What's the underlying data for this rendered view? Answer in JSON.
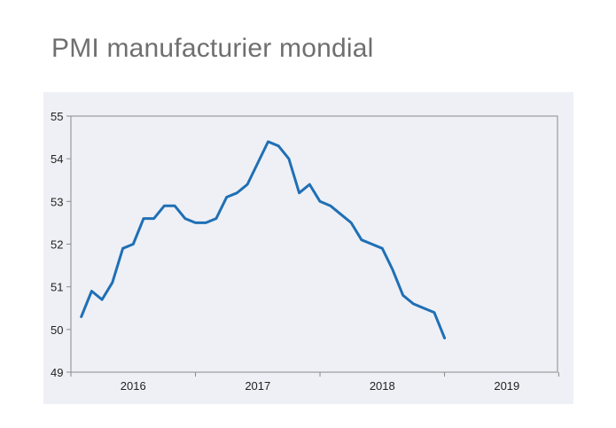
{
  "title": "PMI manufacturier mondial",
  "chart_data": {
    "type": "line",
    "title": "PMI manufacturier mondial",
    "xlabel": "",
    "ylabel": "",
    "ylim": [
      49,
      55
    ],
    "yticks": [
      "55",
      "54",
      "53",
      "52",
      "51",
      "50",
      "49"
    ],
    "xticks": [
      "2016",
      "2017",
      "2018",
      "2019"
    ],
    "grid": false,
    "line_color": "#1f6fb5",
    "series": [
      {
        "values": [
          50.3,
          50.9,
          50.7,
          51.1,
          51.9,
          52.0,
          52.6,
          52.6,
          52.9,
          52.9,
          52.6,
          52.5,
          52.5,
          52.6,
          53.1,
          53.2,
          53.4,
          53.9,
          54.4,
          54.3,
          54.0,
          53.2,
          53.4,
          53.0,
          52.9,
          52.7,
          52.5,
          52.1,
          52.0,
          51.9,
          51.4,
          50.8,
          50.6,
          50.5,
          50.4,
          49.8
        ]
      }
    ]
  }
}
